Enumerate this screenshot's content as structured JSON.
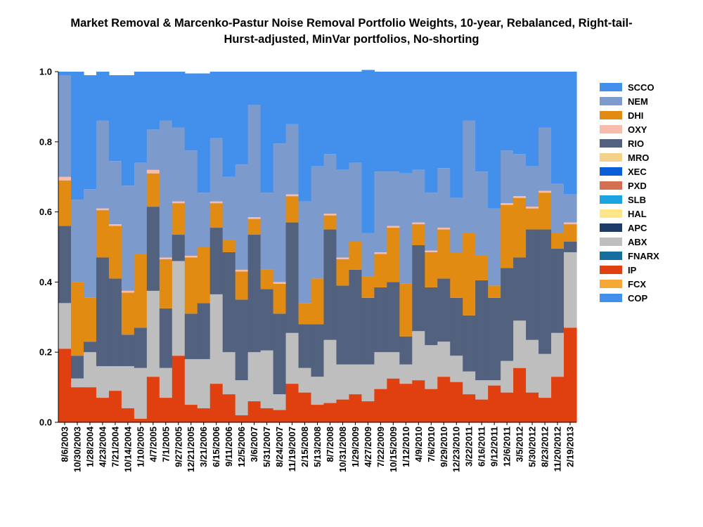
{
  "chart_data": {
    "type": "area",
    "stacked": true,
    "title_lines": [
      "Market Removal & Marcenko-Pastur Noise Removal Portfolio Weights, 10-year, Rebalanced, Right-tail-",
      "Hurst-adjusted, MinVar portfolios, No-shorting"
    ],
    "xlabel": "",
    "ylabel": "",
    "ylim": [
      0,
      1
    ],
    "yticks": [
      "0.0",
      "0.2",
      "0.4",
      "0.6",
      "0.8",
      "1.0"
    ],
    "grid": false,
    "legend_position": "right",
    "x_tick_labels": [
      "8/6/2003",
      "10/30/2003",
      "1/28/2004",
      "4/23/2004",
      "7/21/2004",
      "10/14/2004",
      "1/10/2005",
      "4/7/2005",
      "7/1/2005",
      "9/27/2005",
      "12/21/2005",
      "3/21/2006",
      "6/15/2006",
      "9/11/2006",
      "12/5/2006",
      "3/6/2007",
      "5/31/2007",
      "8/24/2007",
      "11/19/2007",
      "2/15/2008",
      "5/13/2008",
      "8/7/2008",
      "10/31/2008",
      "1/29/2009",
      "4/27/2009",
      "7/22/2009",
      "10/15/2009",
      "1/12/2010",
      "4/9/2010",
      "7/6/2010",
      "9/29/2010",
      "12/23/2010",
      "3/22/2011",
      "6/16/2011",
      "9/12/2011",
      "12/6/2011",
      "3/5/2012",
      "5/30/2012",
      "8/23/2012",
      "11/20/2012",
      "2/19/2013"
    ],
    "n_periods": 41,
    "series": [
      {
        "name": "IP",
        "color": "#e0400f",
        "values": [
          0.21,
          0.1,
          0.1,
          0.07,
          0.09,
          0.04,
          0.01,
          0.13,
          0.07,
          0.19,
          0.05,
          0.04,
          0.11,
          0.08,
          0.02,
          0.06,
          0.04,
          0.035,
          0.11,
          0.085,
          0.05,
          0.055,
          0.065,
          0.08,
          0.06,
          0.095,
          0.125,
          0.11,
          0.12,
          0.095,
          0.13,
          0.115,
          0.08,
          0.065,
          0.105,
          0.085,
          0.155,
          0.085,
          0.07,
          0.13,
          0.27
        ]
      },
      {
        "name": "FCX",
        "color": "#f5a934",
        "values": [
          0,
          0,
          0,
          0,
          0,
          0,
          0,
          0,
          0,
          0,
          0,
          0,
          0,
          0,
          0,
          0,
          0,
          0,
          0,
          0,
          0,
          0,
          0,
          0,
          0,
          0,
          0,
          0,
          0,
          0,
          0,
          0,
          0,
          0,
          0,
          0,
          0,
          0,
          0,
          0,
          0
        ]
      },
      {
        "name": "ABX",
        "color": "#bebebe",
        "values": [
          0.13,
          0.025,
          0.1,
          0.09,
          0.07,
          0.12,
          0.145,
          0.245,
          0.085,
          0.27,
          0.13,
          0.14,
          0.255,
          0.12,
          0.1,
          0.14,
          0.165,
          0.045,
          0.145,
          0.07,
          0.08,
          0.18,
          0.1,
          0.085,
          0.105,
          0.105,
          0.075,
          0.055,
          0.14,
          0.125,
          0.1,
          0.075,
          0.065,
          0.055,
          0.015,
          0.09,
          0.135,
          0.15,
          0.125,
          0.125,
          0.215
        ]
      },
      {
        "name": "RIO",
        "color": "#52617e",
        "values": [
          0.22,
          0.065,
          0.03,
          0.31,
          0.25,
          0.09,
          0.115,
          0.24,
          0.17,
          0.075,
          0.13,
          0.16,
          0.19,
          0.285,
          0.23,
          0.335,
          0.175,
          0.23,
          0.315,
          0.125,
          0.15,
          0.315,
          0.225,
          0.27,
          0.19,
          0.185,
          0.2,
          0.08,
          0.245,
          0.165,
          0.18,
          0.165,
          0.16,
          0.285,
          0.235,
          0.265,
          0.18,
          0.315,
          0.355,
          0.24,
          0.03
        ]
      },
      {
        "name": "DHI",
        "color": "#e18b12",
        "values": [
          0.13,
          0.21,
          0.125,
          0.135,
          0.15,
          0.12,
          0.21,
          0.095,
          0.14,
          0.09,
          0.16,
          0.16,
          0.07,
          0.035,
          0.08,
          0.045,
          0.055,
          0.085,
          0.075,
          0.06,
          0.13,
          0.04,
          0.075,
          0.08,
          0.06,
          0.095,
          0.155,
          0.15,
          0.06,
          0.1,
          0.14,
          0.13,
          0.235,
          0.07,
          0.035,
          0.18,
          0.17,
          0.06,
          0.105,
          0.045,
          0.05
        ]
      },
      {
        "name": "OXY",
        "color": "#f7bcab",
        "values": [
          0.01,
          0,
          0,
          0.005,
          0.005,
          0.005,
          0,
          0.01,
          0.005,
          0.005,
          0.005,
          0,
          0.005,
          0,
          0.005,
          0.005,
          0,
          0.005,
          0.005,
          0,
          0,
          0.005,
          0.005,
          0,
          0,
          0.005,
          0.005,
          0,
          0.005,
          0.005,
          0.005,
          0,
          0,
          0,
          0,
          0.005,
          0.005,
          0.005,
          0.005,
          0,
          0.005
        ]
      },
      {
        "name": "NEM",
        "color": "#7c9acc",
        "values": [
          0.29,
          0.235,
          0.31,
          0.25,
          0.18,
          0.3,
          0.26,
          0.115,
          0.39,
          0.21,
          0.3,
          0.155,
          0.18,
          0.18,
          0.3,
          0.32,
          0.22,
          0.395,
          0.2,
          0.29,
          0.32,
          0.17,
          0.25,
          0.225,
          0.125,
          0.23,
          0.155,
          0.315,
          0.15,
          0.165,
          0.17,
          0.155,
          0.32,
          0.24,
          0.22,
          0.15,
          0.12,
          0.115,
          0.18,
          0.14,
          0.08
        ]
      },
      {
        "name": "SCCO",
        "color": "#4290ec",
        "values": [
          0.01,
          0.365,
          0.325,
          0.14,
          0.245,
          0.315,
          0.26,
          0.165,
          0.14,
          0.16,
          0.22,
          0.34,
          0.19,
          0.3,
          0.265,
          0.095,
          0.345,
          0.205,
          0.15,
          0.37,
          0.27,
          0.235,
          0.28,
          0.26,
          0.465,
          0.285,
          0.285,
          0.29,
          0.28,
          0.345,
          0.275,
          0.36,
          0.14,
          0.285,
          0.39,
          0.225,
          0.235,
          0.27,
          0.16,
          0.32,
          0.35
        ]
      }
    ],
    "legend": [
      {
        "name": "SCCO",
        "color": "#4290ec"
      },
      {
        "name": "NEM",
        "color": "#7c9acc"
      },
      {
        "name": "DHI",
        "color": "#e18b12"
      },
      {
        "name": "OXY",
        "color": "#f7bcab"
      },
      {
        "name": "RIO",
        "color": "#52617e"
      },
      {
        "name": "MRO",
        "color": "#f5d28a"
      },
      {
        "name": "XEC",
        "color": "#0b5ed7"
      },
      {
        "name": "PXD",
        "color": "#d2704f"
      },
      {
        "name": "SLB",
        "color": "#1ba3e2"
      },
      {
        "name": "HAL",
        "color": "#fde58a"
      },
      {
        "name": "APC",
        "color": "#1e3a66"
      },
      {
        "name": "ABX",
        "color": "#bebebe"
      },
      {
        "name": "FNARX",
        "color": "#156e9e"
      },
      {
        "name": "IP",
        "color": "#e0400f"
      },
      {
        "name": "FCX",
        "color": "#f5a934"
      },
      {
        "name": "COP",
        "color": "#4290ec"
      }
    ]
  }
}
